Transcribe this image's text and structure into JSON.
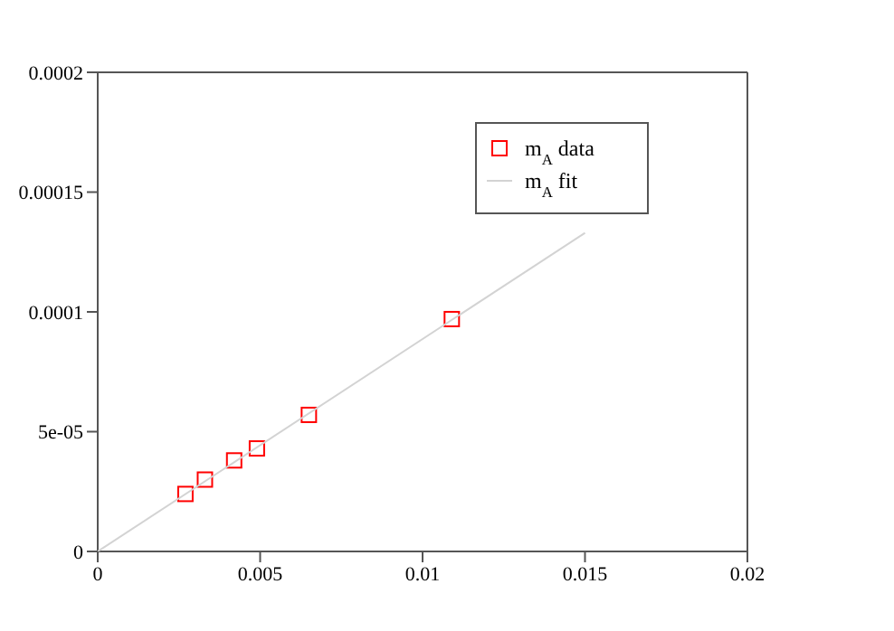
{
  "chart_data": {
    "type": "scatter",
    "xlim": [
      0,
      0.02
    ],
    "xticks": [
      0,
      0.005,
      0.01,
      0.015,
      0.02
    ],
    "ylim": [
      0,
      0.0002
    ],
    "yticks": [
      0,
      "5e-05",
      0.0001,
      0.00015,
      0.0002
    ],
    "series": [
      {
        "name": "m$_{A}$ data",
        "color": "#ff0000",
        "marker": "square",
        "x": [
          0.0027,
          0.0033,
          0.0042,
          0.0049,
          0.0065,
          0.0109
        ],
        "values": [
          2.4e-05,
          3e-05,
          3.8e-05,
          4.3e-05,
          5.7e-05,
          9.7e-05
        ]
      },
      {
        "name": "m$_{A}$ fit",
        "type": "line",
        "color": "#d3d3d3",
        "marker": "none",
        "line_style": "solid",
        "x": [
          0,
          0.015
        ],
        "values": [
          0,
          0.000133
        ]
      }
    ],
    "legend": "top right"
  }
}
